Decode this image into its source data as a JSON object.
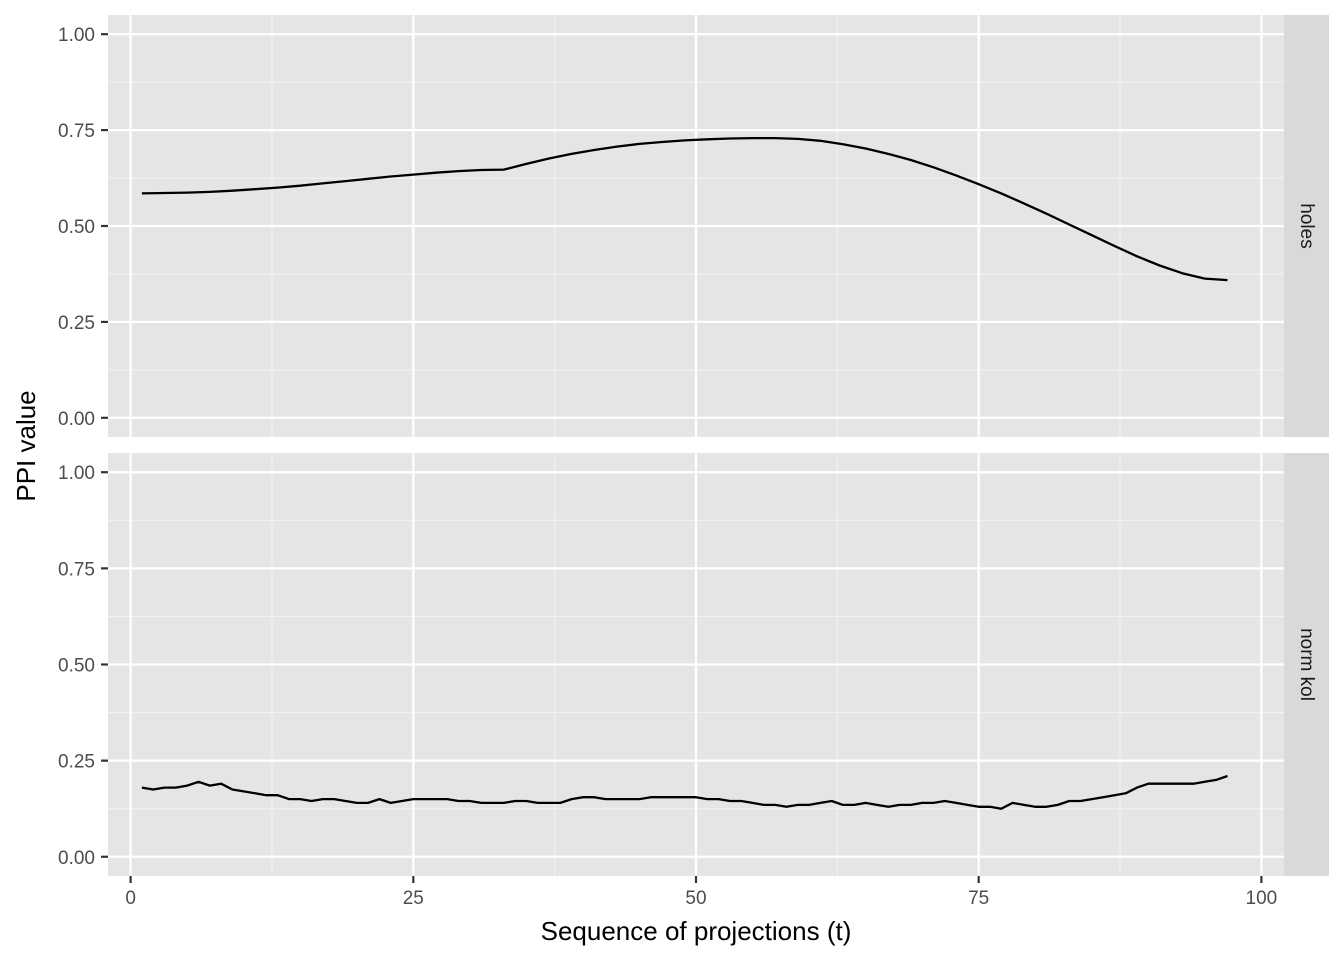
{
  "chart_data": {
    "type": "line",
    "xlabel": "Sequence of projections (t)",
    "ylabel": "PPI value",
    "xlim": [
      -2,
      102
    ],
    "ylim": [
      -0.05,
      1.05
    ],
    "x_ticks": [
      0,
      25,
      50,
      75,
      100
    ],
    "x_tick_labels": [
      "0",
      "25",
      "50",
      "75",
      "100"
    ],
    "y_ticks": [
      0,
      0.25,
      0.5,
      0.75,
      1
    ],
    "y_tick_labels": [
      "0.00",
      "0.25",
      "0.50",
      "0.75",
      "1.00"
    ],
    "grid": true,
    "facets": [
      {
        "label": "holes",
        "x": [
          1,
          3,
          5,
          7,
          9,
          11,
          13,
          15,
          17,
          19,
          21,
          23,
          25,
          27,
          29,
          31,
          33,
          35,
          37,
          39,
          41,
          43,
          45,
          47,
          49,
          51,
          53,
          55,
          57,
          59,
          61,
          63,
          65,
          67,
          69,
          71,
          73,
          75,
          77,
          79,
          81,
          83,
          85,
          87,
          89,
          91,
          93,
          95,
          97
        ],
        "y": [
          0.585,
          0.586,
          0.587,
          0.589,
          0.592,
          0.596,
          0.6,
          0.605,
          0.611,
          0.617,
          0.623,
          0.629,
          0.634,
          0.639,
          0.643,
          0.646,
          0.647,
          0.662,
          0.676,
          0.688,
          0.698,
          0.707,
          0.714,
          0.719,
          0.723,
          0.726,
          0.728,
          0.729,
          0.729,
          0.727,
          0.722,
          0.713,
          0.702,
          0.688,
          0.672,
          0.653,
          0.632,
          0.609,
          0.585,
          0.559,
          0.532,
          0.504,
          0.476,
          0.448,
          0.421,
          0.397,
          0.377,
          0.363,
          0.359
        ]
      },
      {
        "label": "norm kol",
        "x": [
          1,
          2,
          3,
          4,
          5,
          6,
          7,
          8,
          9,
          10,
          11,
          12,
          13,
          14,
          15,
          16,
          17,
          18,
          19,
          20,
          21,
          22,
          23,
          24,
          25,
          26,
          27,
          28,
          29,
          30,
          31,
          32,
          33,
          34,
          35,
          36,
          37,
          38,
          39,
          40,
          41,
          42,
          43,
          44,
          45,
          46,
          47,
          48,
          49,
          50,
          51,
          52,
          53,
          54,
          55,
          56,
          57,
          58,
          59,
          60,
          61,
          62,
          63,
          64,
          65,
          66,
          67,
          68,
          69,
          70,
          71,
          72,
          73,
          74,
          75,
          76,
          77,
          78,
          79,
          80,
          81,
          82,
          83,
          84,
          85,
          86,
          87,
          88,
          89,
          90,
          91,
          92,
          93,
          94,
          95,
          96,
          97
        ],
        "y": [
          0.18,
          0.175,
          0.18,
          0.18,
          0.185,
          0.195,
          0.185,
          0.19,
          0.175,
          0.17,
          0.165,
          0.16,
          0.16,
          0.15,
          0.15,
          0.145,
          0.15,
          0.15,
          0.145,
          0.14,
          0.14,
          0.15,
          0.14,
          0.145,
          0.15,
          0.15,
          0.15,
          0.15,
          0.145,
          0.145,
          0.14,
          0.14,
          0.14,
          0.145,
          0.145,
          0.14,
          0.14,
          0.14,
          0.15,
          0.155,
          0.155,
          0.15,
          0.15,
          0.15,
          0.15,
          0.155,
          0.155,
          0.155,
          0.155,
          0.155,
          0.15,
          0.15,
          0.145,
          0.145,
          0.14,
          0.135,
          0.135,
          0.13,
          0.135,
          0.135,
          0.14,
          0.145,
          0.135,
          0.135,
          0.14,
          0.135,
          0.13,
          0.135,
          0.135,
          0.14,
          0.14,
          0.145,
          0.14,
          0.135,
          0.13,
          0.13,
          0.125,
          0.14,
          0.135,
          0.13,
          0.13,
          0.135,
          0.145,
          0.145,
          0.15,
          0.155,
          0.16,
          0.165,
          0.18,
          0.19,
          0.19,
          0.19,
          0.19,
          0.19,
          0.195,
          0.2,
          0.21
        ]
      }
    ]
  }
}
